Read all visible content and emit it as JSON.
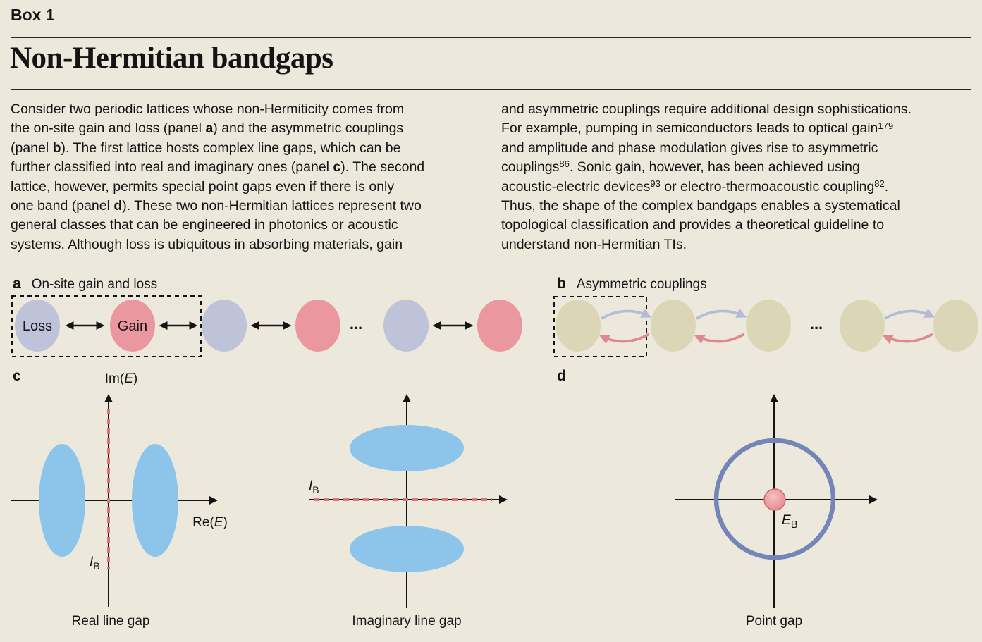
{
  "colors": {
    "background": "#ECE9DC",
    "text": "#141414",
    "loss_circle": "#BFC3DA",
    "gain_circle": "#EB97A0",
    "neutral_circle": "#DBD7B6",
    "band_blue": "#8CC5E9",
    "dashed_red": "#DC757B",
    "ring_blue": "#7485B8",
    "point_red": "#E2868D",
    "coupling_arrow_blue": "#B3BBD8",
    "coupling_arrow_red": "#E0878F"
  },
  "header": {
    "box_label": "Box 1",
    "title": "Non-Hermitian bandgaps"
  },
  "body": {
    "left_column_runs": [
      {
        "text": "Consider two periodic lattices whose non-Hermiticity comes from\nthe on-site gain and loss (panel "
      },
      {
        "text": "a",
        "bold": true
      },
      {
        "text": ") and the asymmetric couplings\n(panel "
      },
      {
        "text": "b",
        "bold": true
      },
      {
        "text": "). The first lattice hosts complex line gaps, which can be\nfurther classified into real and imaginary ones (panel "
      },
      {
        "text": "c",
        "bold": true
      },
      {
        "text": "). The second\nlattice, however, permits special point gaps even if there is only\none band (panel "
      },
      {
        "text": "d",
        "bold": true
      },
      {
        "text": "). These two non-Hermitian lattices represent two\ngeneral classes that can be engineered in photonics or acoustic\nsystems. Although loss is ubiquitous in absorbing materials, gain"
      }
    ],
    "right_column_runs": [
      {
        "text": "and asymmetric couplings require additional design sophistications.\nFor example, pumping in semiconductors leads to optical gain"
      },
      {
        "text": "179",
        "sup": true
      },
      {
        "text": "\nand amplitude and phase modulation gives rise to asymmetric\ncouplings"
      },
      {
        "text": "86",
        "sup": true
      },
      {
        "text": ". Sonic gain, however, has been achieved using\nacoustic-electric devices"
      },
      {
        "text": "93",
        "sup": true
      },
      {
        "text": " or electro-thermoacoustic coupling"
      },
      {
        "text": "82",
        "sup": true
      },
      {
        "text": ".\nThus, the shape of the complex bandgaps enables a systematical\ntopological classification and provides a theoretical guideline to\nunderstand non-Hermitian TIs."
      }
    ]
  },
  "panel_a": {
    "letter": "a",
    "title": "On-site gain and loss",
    "loss_label": "Loss",
    "gain_label": "Gain",
    "dots": "...",
    "sites": [
      "loss",
      "gain",
      "loss",
      "gain",
      "loss",
      "gain"
    ]
  },
  "panel_b": {
    "letter": "b",
    "title": "Asymmetric couplings",
    "dots": "...",
    "sites": [
      "neutral",
      "neutral",
      "neutral",
      "neutral",
      "neutral"
    ]
  },
  "panel_c": {
    "letter": "c",
    "real_line_gap": {
      "y_axis_label": {
        "prefix": "Im(",
        "variable": "E",
        "suffix": ")"
      },
      "x_axis_label": {
        "prefix": "Re(",
        "variable": "E",
        "suffix": ")"
      },
      "gap_point_label": {
        "variable": "I",
        "subscript": "B"
      },
      "caption": "Real line gap"
    },
    "imaginary_line_gap": {
      "gap_point_label": {
        "variable": "I",
        "subscript": "B"
      },
      "caption": "Imaginary line gap"
    }
  },
  "panel_d": {
    "letter": "d",
    "center_label": {
      "variable": "E",
      "subscript": "B"
    },
    "caption": "Point gap"
  }
}
